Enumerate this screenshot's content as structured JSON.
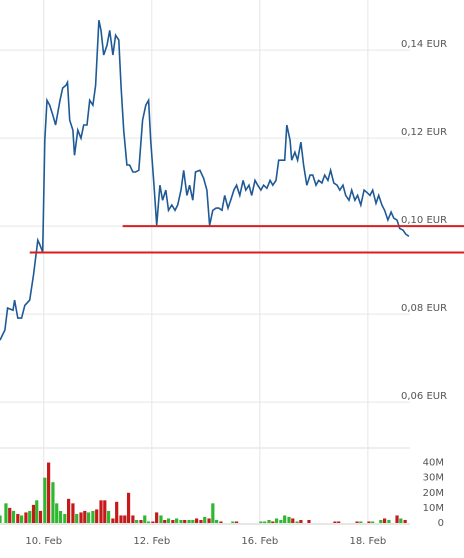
{
  "chart_data": [
    {
      "type": "line",
      "xlim": [
        -0.81,
        6.78
      ],
      "ylim": [
        0.0514,
        0.1514
      ],
      "yticks": [
        {
          "value": 0.06,
          "label": "0,06 EUR"
        },
        {
          "value": 0.08,
          "label": "0,08 EUR"
        },
        {
          "value": 0.1,
          "label": "0,10 EUR"
        },
        {
          "value": 0.12,
          "label": "0,12 EUR"
        },
        {
          "value": 0.14,
          "label": "0,14 EUR"
        }
      ],
      "grid": true,
      "series": [
        {
          "color": "#1f5a96",
          "x": [
            -0.81,
            -0.72,
            -0.67,
            -0.57,
            -0.54,
            -0.48,
            -0.41,
            -0.35,
            -0.26,
            -0.19,
            -0.11,
            -0.07,
            -0.02,
            0.02,
            0.06,
            0.11,
            0.17,
            0.22,
            0.3,
            0.35,
            0.41,
            0.44,
            0.48,
            0.54,
            0.57,
            0.63,
            0.69,
            0.74,
            0.8,
            0.85,
            0.91,
            0.96,
            1.02,
            1.06,
            1.11,
            1.17,
            1.22,
            1.28,
            1.33,
            1.39,
            1.43,
            1.48,
            1.54,
            1.59,
            1.65,
            1.7,
            1.76,
            1.83,
            1.89,
            1.94,
            1.98,
            2.04,
            2.09,
            2.15,
            2.2,
            2.26,
            2.31,
            2.37,
            2.43,
            2.48,
            2.54,
            2.59,
            2.65,
            2.7,
            2.76,
            2.81,
            2.89,
            2.96,
            3.02,
            3.07,
            3.13,
            3.19,
            3.24,
            3.3,
            3.35,
            3.41,
            3.46,
            3.52,
            3.57,
            3.63,
            3.69,
            3.74,
            3.8,
            3.85,
            3.91,
            3.96,
            4.02,
            4.07,
            4.13,
            4.19,
            4.24,
            4.3,
            4.35,
            4.41,
            4.46,
            4.5,
            4.56,
            4.59,
            4.65,
            4.7,
            4.76,
            4.81,
            4.87,
            4.93,
            4.98,
            5.04,
            5.09,
            5.15,
            5.2,
            5.26,
            5.31,
            5.37,
            5.43,
            5.48,
            5.54,
            5.59,
            5.65,
            5.7,
            5.76,
            5.81,
            5.87,
            5.93,
            5.98,
            6.04,
            6.09,
            6.15,
            6.2,
            6.26,
            6.31,
            6.37,
            6.43,
            6.48,
            6.54,
            6.59,
            6.65,
            6.7,
            6.76
          ],
          "values": [
            0.0741,
            0.0764,
            0.0814,
            0.0809,
            0.0832,
            0.0791,
            0.0791,
            0.082,
            0.0832,
            0.0889,
            0.0968,
            0.0957,
            0.0941,
            0.1195,
            0.1286,
            0.1275,
            0.1252,
            0.123,
            0.1286,
            0.1314,
            0.132,
            0.1327,
            0.1241,
            0.1218,
            0.1161,
            0.1218,
            0.12,
            0.123,
            0.123,
            0.1286,
            0.1275,
            0.132,
            0.1468,
            0.1445,
            0.1389,
            0.1411,
            0.1445,
            0.1389,
            0.1434,
            0.1423,
            0.132,
            0.1218,
            0.1139,
            0.1139,
            0.1123,
            0.1123,
            0.1127,
            0.1241,
            0.1275,
            0.1286,
            0.1195,
            0.1093,
            0.1002,
            0.1093,
            0.1059,
            0.1082,
            0.1036,
            0.1048,
            0.1036,
            0.1048,
            0.1082,
            0.1127,
            0.107,
            0.1093,
            0.1059,
            0.1123,
            0.1127,
            0.1109,
            0.1082,
            0.1002,
            0.1036,
            0.1041,
            0.1041,
            0.1036,
            0.107,
            0.1041,
            0.1059,
            0.1082,
            0.1093,
            0.107,
            0.1104,
            0.1082,
            0.1093,
            0.107,
            0.1104,
            0.1093,
            0.1082,
            0.1093,
            0.1086,
            0.1104,
            0.1093,
            0.1104,
            0.115,
            0.115,
            0.115,
            0.123,
            0.1195,
            0.115,
            0.1168,
            0.115,
            0.1191,
            0.1139,
            0.1093,
            0.1116,
            0.1116,
            0.1093,
            0.1104,
            0.1098,
            0.1116,
            0.1104,
            0.1127,
            0.1098,
            0.1093,
            0.1082,
            0.1093,
            0.107,
            0.1059,
            0.1082,
            0.1059,
            0.107,
            0.1048,
            0.1082,
            0.1077,
            0.107,
            0.1082,
            0.1052,
            0.107,
            0.1048,
            0.1036,
            0.1014,
            0.1032,
            0.1018,
            0.1014,
            0.0995,
            0.0991,
            0.0982,
            0.0977
          ]
        }
      ],
      "hlines": [
        {
          "value": 0.1,
          "x0": 1.46,
          "color": "#d91e1e"
        },
        {
          "value": 0.094,
          "x0": -0.26,
          "color": "#d91e1e"
        }
      ]
    },
    {
      "type": "bar",
      "xlim": [
        -0.81,
        6.78
      ],
      "xticks": [
        {
          "value": 0,
          "label": "10. Feb"
        },
        {
          "value": 2,
          "label": "12. Feb"
        },
        {
          "value": 4,
          "label": "16. Feb"
        },
        {
          "value": 6,
          "label": "18. Feb"
        }
      ],
      "ylim": [
        0,
        45
      ],
      "yticks": [
        0,
        {
          "value": 10,
          "label": "10M"
        },
        {
          "value": 20,
          "label": "20M"
        },
        {
          "value": 30,
          "label": "30M"
        },
        {
          "value": 40,
          "label": "40M"
        }
      ],
      "series": [
        {
          "color": "#2fb82f",
          "x": [
            -0.81,
            -0.7,
            -0.56,
            -0.41,
            -0.26,
            -0.13,
            0.02,
            0.17,
            0.24,
            0.31,
            0.39,
            0.61,
            0.83,
            0.91,
            1.2,
            1.72,
            1.87,
            1.94,
            2.17,
            2.31,
            2.46,
            2.54,
            2.69,
            2.76,
            2.98,
            3.13,
            3.2,
            3.5,
            4.02,
            4.09,
            4.17,
            4.31,
            4.39,
            4.46,
            4.54,
            4.69,
            5.87,
            6.09,
            6.24,
            6.39,
            6.61
          ],
          "values": [
            5,
            13,
            8,
            5,
            8,
            15,
            30,
            27,
            13,
            8,
            6,
            6,
            7,
            8,
            8,
            2,
            5,
            1,
            5,
            3,
            3,
            2,
            2,
            2,
            4,
            13,
            2,
            1,
            1,
            1,
            2,
            3,
            2,
            5,
            4,
            1,
            1,
            1,
            2,
            2,
            3
          ]
        },
        {
          "color": "#c41a1a",
          "x": [
            -0.63,
            -0.48,
            -0.33,
            -0.19,
            -0.06,
            0.09,
            0.46,
            0.54,
            0.69,
            0.76,
            0.98,
            1.06,
            1.13,
            1.28,
            1.35,
            1.43,
            1.5,
            1.57,
            1.65,
            1.8,
            2.02,
            2.09,
            2.24,
            2.39,
            2.61,
            2.83,
            2.91,
            3.06,
            3.28,
            3.57,
            4.24,
            4.61,
            4.76,
            4.91,
            5.39,
            5.46,
            5.8,
            6.02,
            6.31,
            6.54,
            6.69
          ],
          "values": [
            10,
            6,
            7,
            12,
            8,
            40,
            16,
            13,
            7,
            8,
            9,
            15,
            15,
            3,
            14,
            5,
            5,
            20,
            5,
            2,
            1,
            7,
            2,
            2,
            2,
            3,
            2,
            3,
            1,
            1,
            1,
            3,
            2,
            2,
            1,
            1,
            1,
            1,
            3,
            5,
            2
          ]
        }
      ]
    }
  ]
}
